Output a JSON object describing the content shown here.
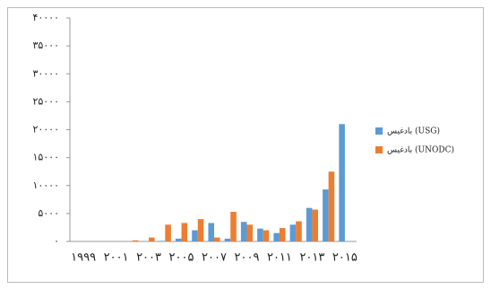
{
  "chart_data": {
    "type": "bar",
    "categories": [
      "۱۹۹۹",
      null,
      "۲۰۰۱",
      null,
      "۲۰۰۳",
      null,
      "۲۰۰۵",
      null,
      "۲۰۰۷",
      null,
      "۲۰۰۹",
      null,
      "۲۰۱۱",
      null,
      "۲۰۱۳",
      null,
      "۲۰۱۵"
    ],
    "series": [
      {
        "name": "بادغیس (USG)",
        "color": "#5b9bd5",
        "values": [
          0,
          0,
          0,
          0,
          0,
          100,
          500,
          2000,
          3300,
          500,
          3500,
          2300,
          1500,
          3000,
          6000,
          9300,
          21000
        ]
      },
      {
        "name": "بادغیس (UNODC)",
        "color": "#ed7d31",
        "values": [
          0,
          0,
          0,
          200,
          700,
          3000,
          3300,
          4000,
          700,
          5300,
          3000,
          2000,
          2400,
          3600,
          5700,
          12500,
          0
        ]
      }
    ],
    "ylim": [
      0,
      40000
    ],
    "yticks": [
      {
        "value": 0,
        "label": "۰"
      },
      {
        "value": 5000,
        "label": "۵۰۰۰"
      },
      {
        "value": 10000,
        "label": "۱۰۰۰۰"
      },
      {
        "value": 15000,
        "label": "۱۵۰۰۰"
      },
      {
        "value": 20000,
        "label": "۲۰۰۰۰"
      },
      {
        "value": 25000,
        "label": "۲۵۰۰۰"
      },
      {
        "value": 30000,
        "label": "۳۰۰۰۰"
      },
      {
        "value": 35000,
        "label": "۳۵۰۰۰"
      },
      {
        "value": 40000,
        "label": "۴۰۰۰۰"
      }
    ],
    "grid": false,
    "legend": "right"
  }
}
